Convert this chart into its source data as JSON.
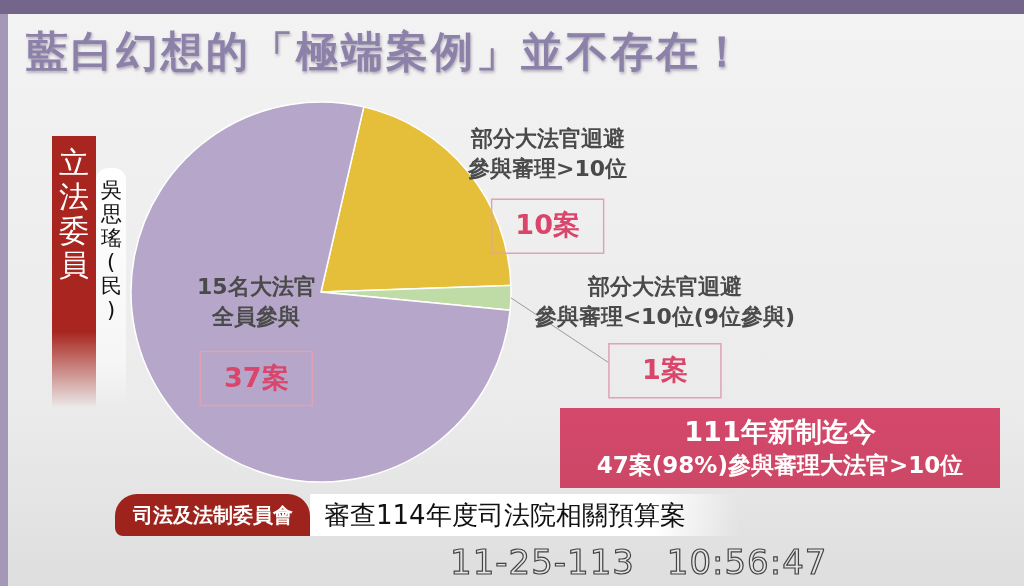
{
  "chart_data": {
    "type": "pie",
    "title": "藍白幻想的「極端案例」並不存在！",
    "categories": [
      "部分大法官迴避參與審理>10位",
      "部分大法官迴避參與審理<10位(9位參與)",
      "15名大法官全員參與"
    ],
    "values": [
      10,
      1,
      37
    ],
    "colors": [
      "#e6bf3a",
      "#c0dca6",
      "#b6a6c9"
    ],
    "value_labels": [
      "10案",
      "1案",
      "37案"
    ],
    "annotations": [
      "立法委員",
      "吳思瑤(民)",
      "111年新制迄今",
      "47案(98%)參與審理大法官>10位",
      "司法及法制委員會",
      "審查114年度司法院相關預算案",
      "11-25-113 10:56:47"
    ]
  }
}
